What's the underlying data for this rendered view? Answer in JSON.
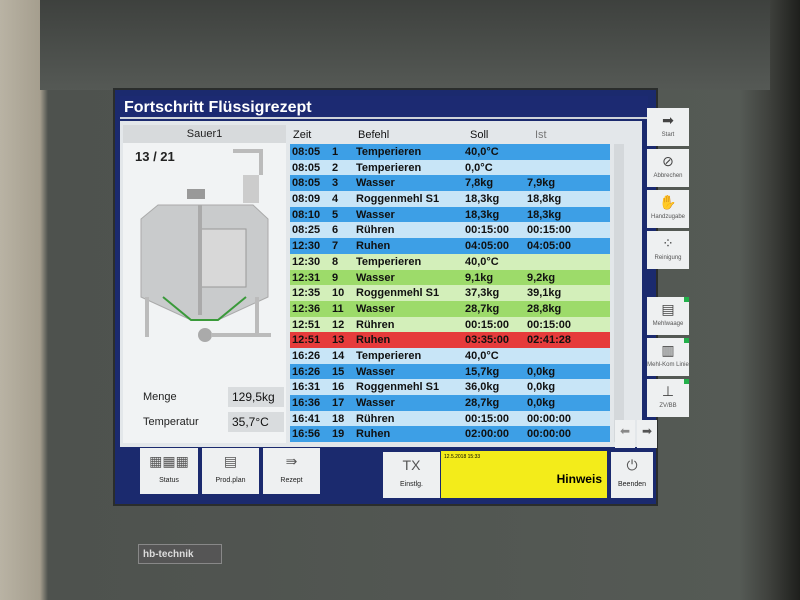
{
  "title": "Fortschritt Flüssigrezept",
  "left": {
    "tank_name": "Sauer1",
    "step": "13 / 21",
    "menge_label": "Menge",
    "menge_value": "129,5kg",
    "temp_label": "Temperatur",
    "temp_value": "35,7°C"
  },
  "table": {
    "headers": {
      "zeit": "Zeit",
      "befehl": "Befehl",
      "soll": "Soll",
      "ist": "Ist"
    },
    "rows": [
      [
        "08:05",
        "1",
        "Temperieren",
        "40,0°C",
        "",
        "blue"
      ],
      [
        "08:05",
        "2",
        "Temperieren",
        "0,0°C",
        "",
        "lightblue"
      ],
      [
        "08:05",
        "3",
        "Wasser",
        "7,8kg",
        "7,9kg",
        "blue"
      ],
      [
        "08:09",
        "4",
        "Roggenmehl S1",
        "18,3kg",
        "18,8kg",
        "lightblue"
      ],
      [
        "08:10",
        "5",
        "Wasser",
        "18,3kg",
        "18,3kg",
        "blue"
      ],
      [
        "08:25",
        "6",
        "Rühren",
        "00:15:00",
        "00:15:00",
        "lightblue"
      ],
      [
        "12:30",
        "7",
        "Ruhen",
        "04:05:00",
        "04:05:00",
        "blue"
      ],
      [
        "12:30",
        "8",
        "Temperieren",
        "40,0°C",
        "",
        "lightgreen"
      ],
      [
        "12:31",
        "9",
        "Wasser",
        "9,1kg",
        "9,2kg",
        "green"
      ],
      [
        "12:35",
        "10",
        "Roggenmehl S1",
        "37,3kg",
        "39,1kg",
        "lightgreen"
      ],
      [
        "12:36",
        "11",
        "Wasser",
        "28,7kg",
        "28,8kg",
        "green"
      ],
      [
        "12:51",
        "12",
        "Rühren",
        "00:15:00",
        "00:15:00",
        "lightgreen"
      ],
      [
        "12:51",
        "13",
        "Ruhen",
        "03:35:00",
        "02:41:28",
        "red"
      ],
      [
        "16:26",
        "14",
        "Temperieren",
        "40,0°C",
        "",
        "lightblue"
      ],
      [
        "16:26",
        "15",
        "Wasser",
        "15,7kg",
        "0,0kg",
        "blue"
      ],
      [
        "16:31",
        "16",
        "Roggenmehl S1",
        "36,0kg",
        "0,0kg",
        "lightblue"
      ],
      [
        "16:36",
        "17",
        "Wasser",
        "28,7kg",
        "0,0kg",
        "blue"
      ],
      [
        "16:41",
        "18",
        "Rühren",
        "00:15:00",
        "00:00:00",
        "lightblue"
      ],
      [
        "16:56",
        "19",
        "Ruhen",
        "02:00:00",
        "00:00:00",
        "blue"
      ]
    ]
  },
  "row_colors": {
    "blue": "#3d9fe6",
    "lightblue": "#c8e5f7",
    "green": "#9ddb6a",
    "lightgreen": "#d3efba",
    "red": "#e63b3b"
  },
  "right_buttons": [
    {
      "label": "Start",
      "icon": "arrow-right-icon",
      "glyph": "➡"
    },
    {
      "label": "Abbrechen",
      "icon": "cancel-icon",
      "glyph": "⊘"
    },
    {
      "label": "Handzugabe",
      "icon": "hand-icon",
      "glyph": "✋"
    },
    {
      "label": "Reinigung",
      "icon": "cleaning-icon",
      "glyph": "⁘"
    },
    {
      "label": "Mehlwaage",
      "icon": "scale-icon",
      "glyph": "▤"
    },
    {
      "label": "Mehl-Kom Linie",
      "icon": "silo-icon",
      "glyph": "▥"
    },
    {
      "label": "ZV/BB",
      "icon": "balance-icon",
      "glyph": "⊥"
    }
  ],
  "nav": {
    "prev": "⬅",
    "next": "➡"
  },
  "bottom": {
    "status": "Status",
    "prodplan": "Prod.plan",
    "rezept": "Rezept",
    "einstlg": "Einstlg.",
    "datetime": "12.5.2018  15:33",
    "hinweis": "Hinweis",
    "beenden": "Beenden"
  },
  "logo": "hb-technik"
}
